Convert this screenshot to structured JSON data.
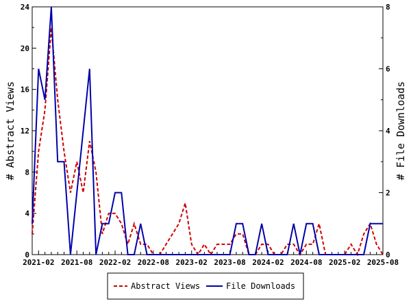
{
  "chart_data": {
    "type": "line",
    "x": [
      "2021-01",
      "2021-02",
      "2021-03",
      "2021-04",
      "2021-05",
      "2021-06",
      "2021-07",
      "2021-08",
      "2021-09",
      "2021-10",
      "2021-11",
      "2021-12",
      "2022-01",
      "2022-02",
      "2022-03",
      "2022-04",
      "2022-05",
      "2022-06",
      "2022-07",
      "2022-08",
      "2022-09",
      "2022-10",
      "2022-11",
      "2022-12",
      "2023-01",
      "2023-02",
      "2023-03",
      "2023-04",
      "2023-05",
      "2023-06",
      "2023-07",
      "2023-08",
      "2023-09",
      "2023-10",
      "2023-11",
      "2023-12",
      "2024-01",
      "2024-02",
      "2024-03",
      "2024-04",
      "2024-05",
      "2024-06",
      "2024-07",
      "2024-08",
      "2024-09",
      "2024-10",
      "2024-11",
      "2024-12",
      "2025-01",
      "2025-02",
      "2025-03",
      "2025-04",
      "2025-05",
      "2025-06",
      "2025-07",
      "2025-08"
    ],
    "x_ticks": [
      "2021-02",
      "2021-08",
      "2022-02",
      "2022-08",
      "2023-02",
      "2023-08",
      "2024-02",
      "2024-08",
      "2025-02",
      "2025-08"
    ],
    "series": [
      {
        "name": "Abstract Views",
        "axis": "left",
        "color": "#cc0000",
        "style": "dashed",
        "values": [
          2,
          10,
          14,
          22,
          15,
          10,
          6,
          9,
          6,
          11,
          8,
          2,
          4,
          4,
          3,
          1,
          3,
          1,
          1,
          0,
          0,
          1,
          2,
          3,
          5,
          1,
          0,
          1,
          0,
          1,
          1,
          1,
          2,
          2,
          0,
          0,
          1,
          1,
          0,
          0,
          1,
          1,
          0,
          1,
          1,
          3,
          0,
          0,
          0,
          0,
          1,
          0,
          2,
          3,
          1,
          0
        ]
      },
      {
        "name": "File Downloads",
        "axis": "right",
        "color": "#0000aa",
        "style": "solid",
        "values": [
          1,
          6,
          5,
          8,
          3,
          3,
          0,
          2,
          4,
          6,
          0,
          1,
          1,
          2,
          2,
          0,
          0,
          1,
          0,
          0,
          0,
          0,
          0,
          0,
          0,
          0,
          0,
          0,
          0,
          0,
          0,
          0,
          1,
          1,
          0,
          0,
          1,
          0,
          0,
          0,
          0,
          1,
          0,
          1,
          1,
          0,
          0,
          0,
          0,
          0,
          0,
          0,
          0,
          1,
          1,
          1
        ]
      }
    ],
    "ylabel": "# Abstract Views",
    "y2label": "# File Downloads",
    "ylim": [
      0,
      24
    ],
    "yticks": [
      0,
      4,
      8,
      12,
      16,
      20,
      24
    ],
    "y2lim": [
      0,
      8
    ],
    "y2ticks": [
      0,
      2,
      4,
      6,
      8
    ],
    "grid": false,
    "legend_position": "bottom-center"
  }
}
